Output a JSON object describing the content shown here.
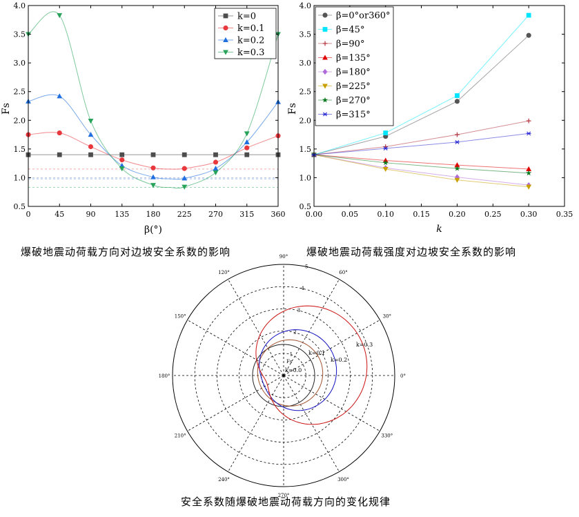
{
  "captions": {
    "left": "爆破地震动荷载方向对边坡安全系数的影响",
    "right": "爆破地震动荷载强度对边坡安全系数的影响",
    "bottom": "安全系数随爆破地震动荷载方向的变化规律"
  },
  "chart_data": [
    {
      "type": "line",
      "xlabel": "β(°)",
      "ylabel": "Fs",
      "xlim": [
        0,
        360
      ],
      "ylim": [
        0.5,
        4.0
      ],
      "xticks": [
        0,
        45,
        90,
        135,
        180,
        225,
        270,
        315,
        360
      ],
      "yticks": [
        0.5,
        1.0,
        1.5,
        2.0,
        2.5,
        3.0,
        3.5,
        4.0
      ],
      "legend_position": "top-right",
      "x": [
        0,
        45,
        90,
        135,
        180,
        205,
        225,
        270,
        315,
        360
      ],
      "series": [
        {
          "name": "k=0",
          "marker": "square",
          "color": "#4d4d4d",
          "values": [
            1.4,
            1.4,
            1.4,
            1.4,
            1.4,
            1.4,
            1.4,
            1.4,
            1.4,
            1.4
          ],
          "ref_line": null
        },
        {
          "name": "k=0.1",
          "marker": "circle",
          "color": "#e8383d",
          "values": [
            1.75,
            1.78,
            1.54,
            1.31,
            1.17,
            1.15,
            1.16,
            1.27,
            1.52,
            1.73
          ],
          "ref_line": 1.15
        },
        {
          "name": "k=0.2",
          "marker": "triangle",
          "color": "#1f6fe0",
          "values": [
            2.33,
            2.42,
            1.75,
            1.21,
            1.01,
            0.98,
            0.99,
            1.16,
            1.62,
            2.32
          ],
          "ref_line": 0.98
        },
        {
          "name": "k=0.3",
          "marker": "triangle-down",
          "color": "#27a35a",
          "values": [
            3.5,
            3.83,
            1.99,
            1.16,
            0.87,
            0.83,
            0.84,
            1.09,
            1.77,
            3.5
          ],
          "ref_line": 0.83
        }
      ]
    },
    {
      "type": "line",
      "xlabel": "k",
      "ylabel": "Fs",
      "xlim": [
        0.0,
        0.35
      ],
      "ylim": [
        0.5,
        4.0
      ],
      "xticks": [
        0.0,
        0.05,
        0.1,
        0.15,
        0.2,
        0.25,
        0.3,
        0.35
      ],
      "xtick_labels": [
        "0.00",
        "0.05",
        "0.10",
        "0.15",
        "0.20",
        "0.25",
        "0.30",
        "0.35"
      ],
      "yticks": [
        0.5,
        1.0,
        1.5,
        2.0,
        2.5,
        3.0,
        3.5,
        4.0
      ],
      "legend_position": "top-left",
      "x": [
        0.0,
        0.1,
        0.2,
        0.3
      ],
      "series": [
        {
          "name": "β=0°or360°",
          "marker": "circle",
          "color": "#555555",
          "values": [
            1.4,
            1.72,
            2.33,
            3.48
          ]
        },
        {
          "name": "β=45°",
          "marker": "square",
          "color": "#00e5ff",
          "values": [
            1.4,
            1.78,
            2.43,
            3.83
          ]
        },
        {
          "name": "β=90°",
          "marker": "plus",
          "color": "#b0303a",
          "values": [
            1.4,
            1.54,
            1.75,
            1.99
          ]
        },
        {
          "name": "β=135°",
          "marker": "triangle",
          "color": "#e00000",
          "values": [
            1.4,
            1.3,
            1.22,
            1.15
          ]
        },
        {
          "name": "β=180°",
          "marker": "diamond",
          "color": "#b06ad8",
          "values": [
            1.4,
            1.17,
            1.01,
            0.87
          ]
        },
        {
          "name": "β=225°",
          "marker": "triangle-down",
          "color": "#c8a000",
          "values": [
            1.4,
            1.15,
            0.96,
            0.84
          ]
        },
        {
          "name": "β=270°",
          "marker": "star",
          "color": "#0a7a1e",
          "values": [
            1.4,
            1.26,
            1.16,
            1.08
          ]
        },
        {
          "name": "β=315°",
          "marker": "asterisk",
          "color": "#2b2bd6",
          "values": [
            1.4,
            1.51,
            1.62,
            1.77
          ]
        }
      ]
    },
    {
      "type": "polar",
      "radial_range": [
        0,
        5
      ],
      "radial_ticks": [
        1,
        2,
        3,
        4,
        5
      ],
      "angle_ticks": [
        0,
        30,
        60,
        90,
        120,
        150,
        180,
        210,
        240,
        270,
        300,
        330
      ],
      "angle_tick_labels": [
        "0°",
        "30°",
        "60°",
        "90°",
        "120°",
        "150°",
        "180°",
        "210°",
        "240°",
        "270°",
        "300°",
        "330°"
      ],
      "radial_label": "Fs",
      "series": [
        {
          "name": "k=0",
          "color": "#222222"
        },
        {
          "name": "k=0.1",
          "color": "#a0522d"
        },
        {
          "name": "k=0.2",
          "color": "#1010c0"
        },
        {
          "name": "k=0.3",
          "color": "#cc1010"
        }
      ]
    }
  ]
}
